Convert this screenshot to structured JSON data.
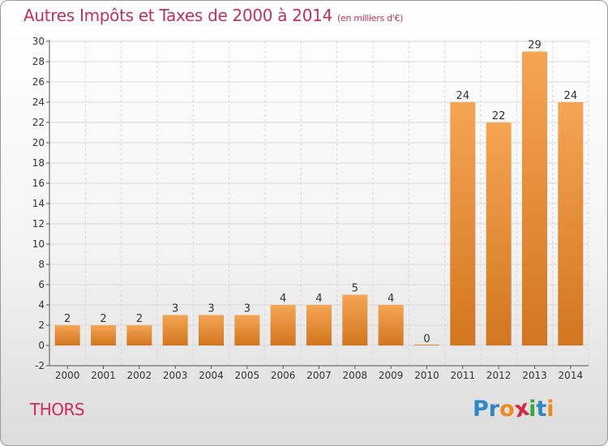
{
  "title": "Autres Impôts et Taxes de 2000 à 2014",
  "unit_note": "(en milliers d'€)",
  "commune": "THORS",
  "logo": {
    "text": "Proxiti",
    "letters": [
      {
        "ch": "P",
        "color": "#2f86c8"
      },
      {
        "ch": "r",
        "color": "#2f86c8"
      },
      {
        "ch": "o",
        "color": "#f08a1c"
      },
      {
        "ch": "x",
        "color": "#d7263d"
      },
      {
        "ch": "i",
        "color": "#3aa83a"
      },
      {
        "ch": "t",
        "color": "#2f86c8"
      },
      {
        "ch": "i",
        "color": "#f08a1c"
      }
    ]
  },
  "colors": {
    "bar_light": "#f5a553",
    "bar_dark": "#d2761f",
    "title": "#c0305a",
    "grid": "#d9d9d9"
  },
  "chart_data": {
    "type": "bar",
    "categories": [
      "2000",
      "2001",
      "2002",
      "2003",
      "2004",
      "2005",
      "2006",
      "2007",
      "2008",
      "2009",
      "2010",
      "2011",
      "2012",
      "2013",
      "2014"
    ],
    "values": [
      2,
      2,
      2,
      3,
      3,
      3,
      4,
      4,
      5,
      4,
      0,
      24,
      22,
      29,
      24
    ],
    "data_labels": [
      "2",
      "2",
      "2",
      "3",
      "3",
      "3",
      "4",
      "4",
      "5",
      "4",
      "0",
      "24",
      "22",
      "29",
      "24"
    ],
    "ylim": [
      -2,
      30
    ],
    "yticks": [
      -2,
      0,
      2,
      4,
      6,
      8,
      10,
      12,
      14,
      16,
      18,
      20,
      22,
      24,
      26,
      28,
      30
    ],
    "grid": true,
    "legend": "none"
  }
}
